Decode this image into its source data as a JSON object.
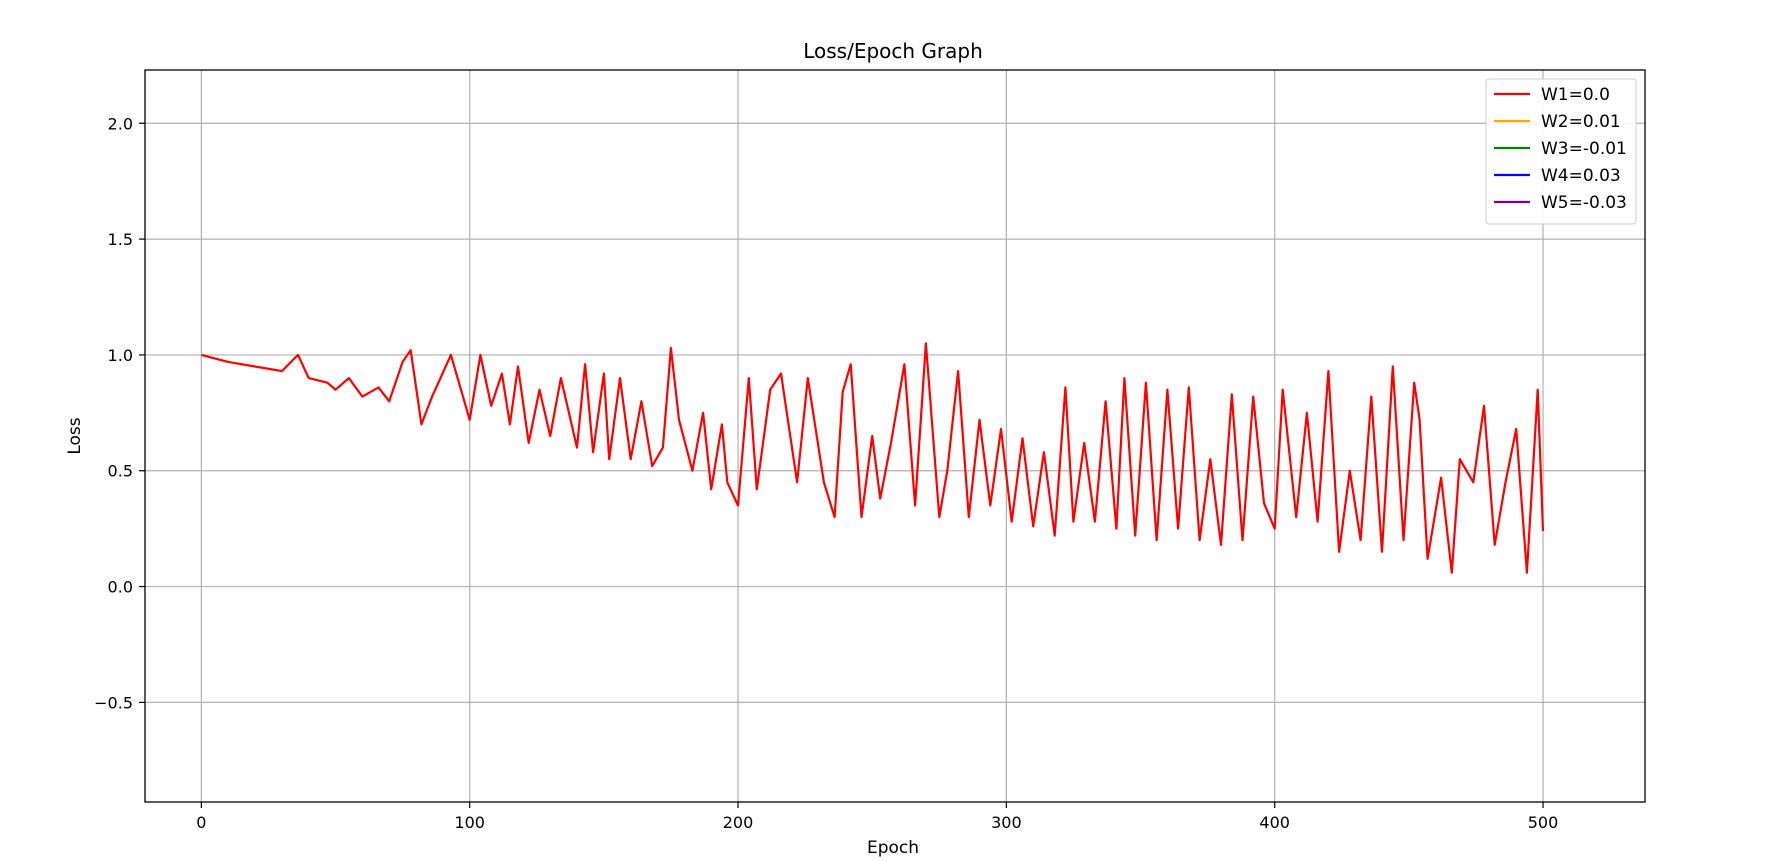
{
  "chart_data": {
    "type": "line",
    "title": "Loss/Epoch Graph",
    "xlabel": "Epoch",
    "ylabel": "Loss",
    "xlim": [
      -21,
      538
    ],
    "ylim": [
      -0.93,
      2.23
    ],
    "xticks": [
      0,
      100,
      200,
      300,
      400,
      500
    ],
    "yticks": [
      -0.5,
      0.0,
      0.5,
      1.0,
      1.5,
      2.0
    ],
    "xtick_labels": [
      "0",
      "100",
      "200",
      "300",
      "400",
      "500"
    ],
    "ytick_labels": [
      "−0.5",
      "0.0",
      "0.5",
      "1.0",
      "1.5",
      "2.0"
    ],
    "grid": true,
    "legend": "top-right",
    "series": [
      {
        "name": "W1=0.0",
        "color": "#ff0000",
        "x": [
          0,
          10,
          20,
          30,
          36,
          40,
          47,
          50,
          55,
          60,
          66,
          70,
          75,
          78,
          82,
          86,
          93,
          100,
          104,
          108,
          112,
          115,
          118,
          122,
          126,
          130,
          134,
          140,
          143,
          146,
          150,
          152,
          156,
          160,
          164,
          168,
          172,
          175,
          178,
          183,
          187,
          190,
          194,
          196,
          200,
          204,
          207,
          212,
          216,
          222,
          226,
          232,
          236,
          239,
          242,
          246,
          250,
          253,
          257,
          262,
          266,
          270,
          275,
          278,
          282,
          286,
          290,
          294,
          298,
          302,
          306,
          310,
          314,
          318,
          322,
          325,
          329,
          333,
          337,
          341,
          344,
          348,
          352,
          356,
          360,
          364,
          368,
          372,
          376,
          380,
          384,
          388,
          392,
          396,
          400,
          403,
          408,
          412,
          416,
          420,
          424,
          428,
          432,
          436,
          440,
          444,
          448,
          452,
          454,
          457,
          462,
          466,
          469,
          474,
          478,
          482,
          486,
          490,
          494,
          498,
          500
        ],
        "values": [
          1.0,
          0.97,
          0.95,
          0.93,
          1.0,
          0.9,
          0.88,
          0.85,
          0.9,
          0.82,
          0.86,
          0.8,
          0.97,
          1.02,
          0.7,
          0.82,
          1.0,
          0.72,
          1.0,
          0.78,
          0.92,
          0.7,
          0.95,
          0.62,
          0.85,
          0.65,
          0.9,
          0.6,
          0.96,
          0.58,
          0.92,
          0.55,
          0.9,
          0.55,
          0.8,
          0.52,
          0.6,
          1.03,
          0.72,
          0.5,
          0.75,
          0.42,
          0.7,
          0.45,
          0.35,
          0.9,
          0.42,
          0.85,
          0.92,
          0.45,
          0.9,
          0.45,
          0.3,
          0.84,
          0.96,
          0.3,
          0.65,
          0.38,
          0.62,
          0.96,
          0.35,
          1.05,
          0.3,
          0.5,
          0.93,
          0.3,
          0.72,
          0.35,
          0.68,
          0.28,
          0.64,
          0.26,
          0.58,
          0.22,
          0.86,
          0.28,
          0.62,
          0.28,
          0.8,
          0.25,
          0.9,
          0.22,
          0.88,
          0.2,
          0.85,
          0.25,
          0.86,
          0.2,
          0.55,
          0.18,
          0.83,
          0.2,
          0.82,
          0.36,
          0.25,
          0.85,
          0.3,
          0.75,
          0.28,
          0.93,
          0.15,
          0.5,
          0.2,
          0.82,
          0.15,
          0.95,
          0.2,
          0.88,
          0.72,
          0.12,
          0.47,
          0.06,
          0.55,
          0.45,
          0.78,
          0.18,
          0.45,
          0.68,
          0.06,
          0.85,
          0.24
        ]
      },
      {
        "name": "W2=0.01",
        "color": "#ffa500",
        "x": [],
        "values": []
      },
      {
        "name": "W3=-0.01",
        "color": "#008000",
        "x": [],
        "values": []
      },
      {
        "name": "W4=0.03",
        "color": "#0000ff",
        "x": [],
        "values": []
      },
      {
        "name": "W5=-0.03",
        "color": "#800080",
        "x": [],
        "values": []
      }
    ]
  }
}
